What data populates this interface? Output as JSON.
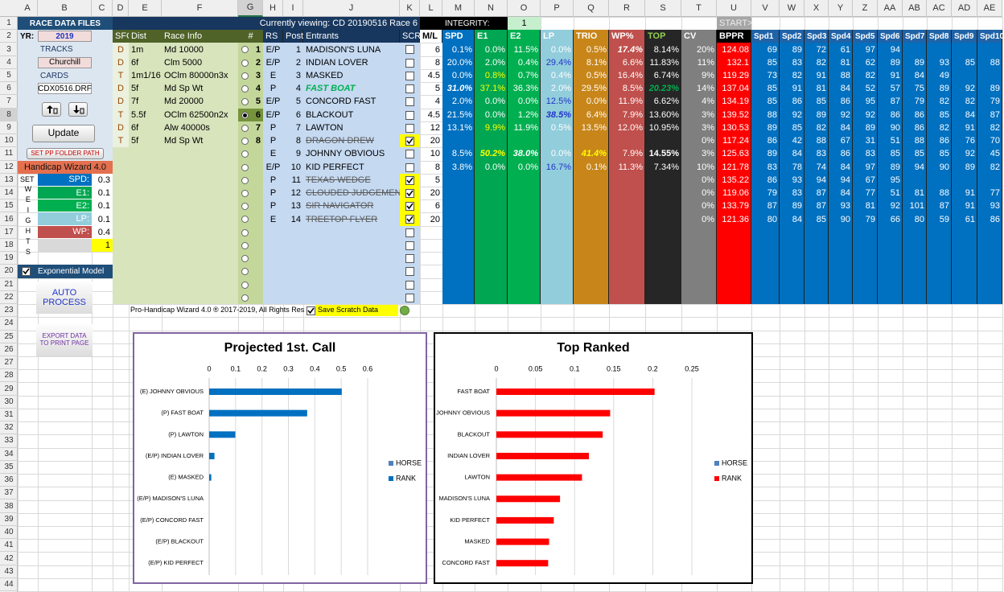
{
  "columns": [
    "A",
    "B",
    "C",
    "D",
    "E",
    "F",
    "G",
    "H",
    "I",
    "J",
    "K",
    "L",
    "M",
    "N",
    "O",
    "P",
    "Q",
    "R",
    "S",
    "T",
    "U",
    "V",
    "W",
    "X",
    "Y",
    "Z",
    "AA",
    "AB",
    "AC",
    "AD",
    "AE"
  ],
  "rows": [
    1,
    2,
    3,
    4,
    5,
    6,
    7,
    8,
    9,
    10,
    11,
    12,
    13,
    14,
    15,
    16,
    17,
    18,
    19,
    20,
    21,
    22,
    23,
    24,
    25,
    26,
    27,
    28,
    29,
    30,
    31,
    32,
    33,
    34,
    35,
    36,
    37,
    38,
    39,
    40,
    41,
    42,
    43,
    44
  ],
  "panel": {
    "title": "RACE DATA FILES",
    "yr_label": "YR:",
    "year": 2019,
    "tracks_label": "TRACKS",
    "track": "Churchill",
    "cards_label": "CARDS",
    "card": "CDX0516.DRF",
    "update": "Update",
    "set_pp": "SET PP FOLDER PATH",
    "wizard": "Handicap Wizard 4.0",
    "set": "SET",
    "weights_label": "WEIGHTS",
    "weights": [
      {
        "label": "SPD:",
        "value": 0.3
      },
      {
        "label": "E1:",
        "value": 0.1
      },
      {
        "label": "E2:",
        "value": 0.1
      },
      {
        "label": "LP:",
        "value": 0.1
      },
      {
        "label": "WP:",
        "value": 0.4
      }
    ],
    "extra": 1,
    "exponential": "Exponential Model",
    "exponential_checked": true,
    "auto": "AUTO PROCESS",
    "export": "EXPORT DATA TO PRINT PAGE"
  },
  "viewing": "Currently viewing: CD 20190516 Race 6",
  "integrity": {
    "label": "INTEGRITY:",
    "value": 1
  },
  "start": "START>",
  "races": {
    "headers": [
      "SFC",
      "Dist",
      "Race Info",
      "#"
    ],
    "rows": [
      {
        "sfc": "D",
        "dist": "1m",
        "info": "Md 10000",
        "num": 1
      },
      {
        "sfc": "D",
        "dist": "6f",
        "info": "Clm 5000",
        "num": 2
      },
      {
        "sfc": "T",
        "dist": "1m1/16",
        "info": "OClm 80000n3x",
        "num": 3
      },
      {
        "sfc": "D",
        "dist": "5f",
        "info": "Md Sp Wt",
        "num": 4
      },
      {
        "sfc": "D",
        "dist": "7f",
        "info": "Md 20000",
        "num": 5
      },
      {
        "sfc": "T",
        "dist": "5.5f",
        "info": "OClm 62500n2x",
        "num": 6,
        "selected": true
      },
      {
        "sfc": "D",
        "dist": "6f",
        "info": "Alw 40000s",
        "num": 7
      },
      {
        "sfc": "T",
        "dist": "5f",
        "info": "Md Sp Wt",
        "num": 8
      }
    ]
  },
  "entries": {
    "headers": [
      "RS",
      "Post",
      "Entrants",
      "SCR",
      "M/L",
      "SPD",
      "E1",
      "E2",
      "LP",
      "TRIO",
      "WP%",
      "TOP",
      "CV",
      "BPPR",
      "Spd1",
      "Spd2",
      "Spd3",
      "Spd4",
      "Spd5",
      "Spd6",
      "Spd7",
      "Spd8",
      "Spd9",
      "Spd10"
    ],
    "rows": [
      {
        "rs": "E/P",
        "post": 1,
        "name": "MADISON'S LUNA",
        "scratched": false,
        "ml": 6,
        "spd": "0.1%",
        "e1": "0.0%",
        "e2": "11.5%",
        "lp": "0.0%",
        "trio": "0.5%",
        "wp": "17.4%",
        "top": "8.14%",
        "cv": "20%",
        "bppr": 124.08,
        "figs": [
          69,
          89,
          72,
          61,
          97,
          94
        ]
      },
      {
        "rs": "E/P",
        "post": 2,
        "name": "INDIAN LOVER",
        "scratched": false,
        "ml": 8,
        "spd": "20.0%",
        "e1": "2.0%",
        "e2": "0.4%",
        "lp": "29.4%",
        "trio": "8.1%",
        "wp": "6.6%",
        "top": "11.83%",
        "cv": "11%",
        "bppr": 132.1,
        "figs": [
          85,
          83,
          82,
          81,
          62,
          89,
          89,
          93,
          85,
          88
        ]
      },
      {
        "rs": "E",
        "post": 3,
        "name": "MASKED",
        "scratched": false,
        "ml": 4.5,
        "spd": "0.0%",
        "e1": "0.8%",
        "e2": "0.7%",
        "lp": "0.4%",
        "trio": "0.5%",
        "wp": "16.4%",
        "top": "6.74%",
        "cv": "9%",
        "bppr": 119.29,
        "figs": [
          73,
          82,
          91,
          88,
          82,
          91,
          84,
          49
        ]
      },
      {
        "rs": "P",
        "post": 4,
        "name": "FAST BOAT",
        "scratched": false,
        "ml": 5,
        "spd": "31.0%",
        "e1": "37.1%",
        "e2": "36.3%",
        "lp": "2.0%",
        "trio": "29.5%",
        "wp": "8.5%",
        "top": "20.23%",
        "cv": "14%",
        "bppr": 137.04,
        "figs": [
          85,
          91,
          81,
          84,
          52,
          57,
          75,
          89,
          92,
          89
        ]
      },
      {
        "rs": "E/P",
        "post": 5,
        "name": "CONCORD FAST",
        "scratched": false,
        "ml": 4,
        "spd": "2.0%",
        "e1": "0.0%",
        "e2": "0.0%",
        "lp": "12.5%",
        "trio": "0.0%",
        "wp": "11.9%",
        "top": "6.62%",
        "cv": "4%",
        "bppr": 134.19,
        "figs": [
          85,
          86,
          85,
          86,
          95,
          87,
          79,
          82,
          82,
          79
        ]
      },
      {
        "rs": "E/P",
        "post": 6,
        "name": "BLACKOUT",
        "scratched": false,
        "ml": 4.5,
        "spd": "21.5%",
        "e1": "0.0%",
        "e2": "1.2%",
        "lp": "38.5%",
        "trio": "6.4%",
        "wp": "7.9%",
        "top": "13.60%",
        "cv": "3%",
        "bppr": 139.52,
        "figs": [
          88,
          92,
          89,
          92,
          92,
          86,
          86,
          85,
          84,
          87
        ]
      },
      {
        "rs": "P",
        "post": 7,
        "name": "LAWTON",
        "scratched": false,
        "ml": 12,
        "spd": "13.1%",
        "e1": "9.9%",
        "e2": "11.9%",
        "lp": "0.5%",
        "trio": "13.5%",
        "wp": "12.0%",
        "top": "10.95%",
        "cv": "3%",
        "bppr": 130.53,
        "figs": [
          89,
          85,
          82,
          84,
          89,
          90,
          86,
          82,
          91,
          82
        ]
      },
      {
        "rs": "P",
        "post": 8,
        "name": "DRAGON DREW",
        "scratched": true,
        "ml": 20,
        "cv": "0%",
        "bppr": 117.24,
        "figs": [
          86,
          42,
          88,
          67,
          31,
          51,
          88,
          86,
          76,
          70
        ]
      },
      {
        "rs": "E",
        "post": 9,
        "name": "JOHNNY OBVIOUS",
        "scratched": false,
        "ml": 10,
        "spd": "8.5%",
        "e1": "50.2%",
        "e2": "38.0%",
        "lp": "0.0%",
        "trio": "41.4%",
        "wp": "7.9%",
        "top": "14.55%",
        "cv": "3%",
        "bppr": 125.63,
        "figs": [
          89,
          84,
          83,
          86,
          83,
          85,
          85,
          85,
          92,
          45
        ]
      },
      {
        "rs": "E/P",
        "post": 10,
        "name": "KID PERFECT",
        "scratched": false,
        "ml": 8,
        "spd": "3.8%",
        "e1": "0.0%",
        "e2": "0.0%",
        "lp": "16.7%",
        "trio": "0.1%",
        "wp": "11.3%",
        "top": "7.34%",
        "cv": "10%",
        "bppr": 121.78,
        "figs": [
          83,
          78,
          74,
          84,
          97,
          89,
          94,
          90,
          89,
          82
        ]
      },
      {
        "rs": "P",
        "post": 11,
        "name": "TEXAS WEDGE",
        "scratched": true,
        "ml": 5,
        "cv": "0%",
        "bppr": 135.22,
        "figs": [
          86,
          93,
          94,
          94,
          67,
          95
        ]
      },
      {
        "rs": "P",
        "post": 12,
        "name": "CLOUDED JUDGEMENT",
        "scratched": true,
        "ml": 20,
        "cv": "0%",
        "bppr": 119.06,
        "figs": [
          79,
          83,
          87,
          84,
          77,
          51,
          81,
          88,
          91,
          77
        ]
      },
      {
        "rs": "P",
        "post": 13,
        "name": "SIR NAVIGATOR",
        "scratched": true,
        "ml": 6,
        "cv": "0%",
        "bppr": 133.79,
        "figs": [
          87,
          89,
          87,
          93,
          81,
          92,
          101,
          87,
          91,
          93
        ]
      },
      {
        "rs": "E",
        "post": 14,
        "name": "TREETOP FLYER",
        "scratched": true,
        "ml": 20,
        "cv": "0%",
        "bppr": 121.36,
        "figs": [
          80,
          84,
          85,
          90,
          79,
          66,
          80,
          59,
          61,
          86
        ]
      }
    ]
  },
  "footer": {
    "copyright": "Pro-Handicap Wizard 4.0 ® 2017-2019, All Rights Res",
    "save_scratch": "Save Scratch Data",
    "save_checked": true
  },
  "charts": [
    {
      "type": "bar",
      "orientation": "horizontal",
      "title": "Projected 1st. Call",
      "categories": [
        "(E) JOHNNY OBVIOUS",
        "(P) FAST BOAT",
        "(P) LAWTON",
        "(E/P) INDIAN LOVER",
        "(E) MASKED",
        "(E/P) MADISON'S LUNA",
        "(E/P) CONCORD FAST",
        "(E/P) BLACKOUT",
        "(E/P) KID PERFECT"
      ],
      "series": [
        {
          "name": "HORSE",
          "color": "#4f81bd",
          "values": [
            null,
            null,
            null,
            null,
            null,
            null,
            null,
            null,
            null
          ]
        },
        {
          "name": "RANK",
          "color": "#0070c0",
          "values": [
            0.502,
            0.371,
            0.099,
            0.02,
            0.008,
            0,
            0,
            0,
            0
          ]
        }
      ],
      "xlim": [
        0,
        0.6
      ],
      "xticks": [
        0,
        0.1,
        0.2,
        0.3,
        0.4,
        0.5,
        0.6
      ],
      "grid": true,
      "legend": "right"
    },
    {
      "type": "bar",
      "orientation": "horizontal",
      "title": "Top Ranked",
      "categories": [
        "FAST BOAT",
        "JOHNNY OBVIOUS",
        "BLACKOUT",
        "INDIAN LOVER",
        "LAWTON",
        "MADISON'S LUNA",
        "KID PERFECT",
        "MASKED",
        "CONCORD FAST"
      ],
      "series": [
        {
          "name": "HORSE",
          "color": "#4f81bd",
          "values": [
            null,
            null,
            null,
            null,
            null,
            null,
            null,
            null,
            null
          ]
        },
        {
          "name": "RANK",
          "color": "#ff0000",
          "values": [
            0.2023,
            0.1455,
            0.136,
            0.1183,
            0.1095,
            0.0814,
            0.0734,
            0.0674,
            0.0662
          ]
        }
      ],
      "xlim": [
        0,
        0.25
      ],
      "xticks": [
        0,
        0.05,
        0.1,
        0.15,
        0.2,
        0.25
      ],
      "grid": true,
      "legend": "right"
    }
  ]
}
